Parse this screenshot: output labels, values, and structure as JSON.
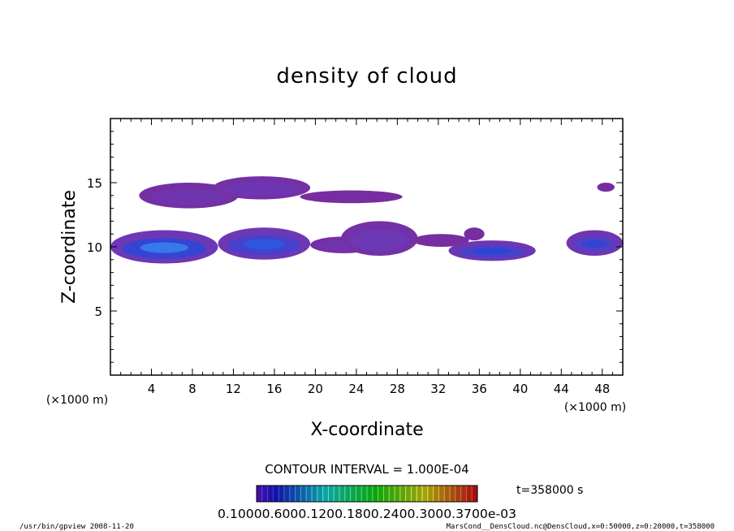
{
  "chart_data": {
    "type": "heatmap",
    "title": "density of cloud",
    "xlabel": "X-coordinate",
    "ylabel": "Z-coordinate",
    "x_unit": "(×1000 m)",
    "y_unit": "(×1000 m)",
    "xlim": [
      0,
      50
    ],
    "ylim": [
      0,
      20
    ],
    "x_ticks": [
      4,
      8,
      12,
      16,
      20,
      24,
      28,
      32,
      36,
      40,
      44,
      48
    ],
    "y_ticks": [
      5,
      10,
      15
    ],
    "contour_interval": "CONTOUR INTERVAL = 1.000E-04",
    "time_label": "t=358000 s",
    "colorbar_labels": [
      "0.10000",
      "0.6000",
      "0.1200",
      "0.1800",
      "0.2400",
      "0.3000",
      "0.3700e-03"
    ],
    "colorbar_text": "0.10000.6000.1200.1800.2400.3000.3700e-03",
    "colors": {
      "low": "#7a2a9a",
      "mid": "#6a3fb8",
      "high": "#1f4fd8",
      "peak": "#3aa0ff"
    },
    "regions": [
      {
        "name": "upper layer west",
        "x": [
          2.8,
          12.5
        ],
        "z": [
          13.0,
          15.0
        ],
        "level": 0.3
      },
      {
        "name": "upper layer centre",
        "x": [
          10.0,
          19.5
        ],
        "z": [
          13.7,
          15.5
        ],
        "level": 0.35
      },
      {
        "name": "upper layer tail",
        "x": [
          18.5,
          28.5
        ],
        "z": [
          13.4,
          14.4
        ],
        "level": 0.15
      },
      {
        "name": "lower layer west",
        "x": [
          0.0,
          10.5
        ],
        "z": [
          8.7,
          11.3
        ],
        "level": 0.85
      },
      {
        "name": "lower layer centre",
        "x": [
          10.5,
          19.5
        ],
        "z": [
          9.0,
          11.5
        ],
        "level": 0.75
      },
      {
        "name": "lower layer east",
        "x": [
          19.5,
          26.0
        ],
        "z": [
          9.5,
          10.8
        ],
        "level": 0.3
      },
      {
        "name": "middle patch",
        "x": [
          22.5,
          30.0
        ],
        "z": [
          9.3,
          12.0
        ],
        "level": 0.4
      },
      {
        "name": "middle tail",
        "x": [
          29.5,
          35.0
        ],
        "z": [
          10.0,
          11.0
        ],
        "level": 0.2
      },
      {
        "name": "east lower patch",
        "x": [
          33.0,
          41.5
        ],
        "z": [
          8.9,
          10.5
        ],
        "level": 0.7
      },
      {
        "name": "east small",
        "x": [
          34.5,
          36.5
        ],
        "z": [
          10.5,
          11.5
        ],
        "level": 0.2
      },
      {
        "name": "far east patch",
        "x": [
          44.5,
          50.0
        ],
        "z": [
          9.3,
          11.3
        ],
        "level": 0.65
      },
      {
        "name": "far east upper",
        "x": [
          47.5,
          49.2
        ],
        "z": [
          14.3,
          15.0
        ],
        "level": 0.15
      }
    ]
  },
  "footer": {
    "left": "/usr/bin/gpview   2008-11-20",
    "right": "MarsCond__DensCloud.nc@DensCloud,x=0:50000,z=0:20000,t=358000"
  }
}
